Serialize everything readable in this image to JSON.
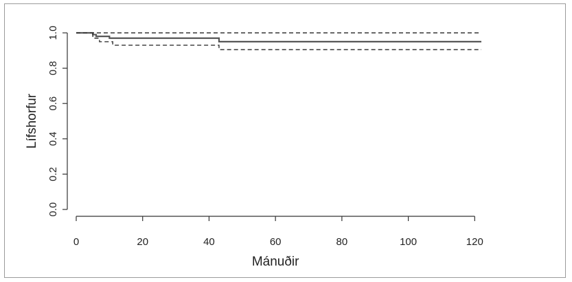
{
  "chart_data": {
    "type": "line",
    "title": "",
    "xlabel": "Mánuðir",
    "ylabel": "Lífshorfur",
    "xlim": [
      0,
      125
    ],
    "ylim": [
      -0.02,
      1.03
    ],
    "x_ticks": [
      0,
      20,
      40,
      60,
      80,
      100,
      120
    ],
    "x_tick_labels": [
      "0",
      "20",
      "40",
      "60",
      "80",
      "100",
      "120"
    ],
    "y_ticks": [
      0.0,
      0.2,
      0.4,
      0.6,
      0.8,
      1.0
    ],
    "y_tick_labels": [
      "0.0",
      "0.2",
      "0.4",
      "0.6",
      "0.8",
      "1.0"
    ],
    "grid": false,
    "series": [
      {
        "role": "estimate",
        "style": "solid",
        "color": "#555555",
        "points": [
          [
            0,
            1.0
          ],
          [
            5,
            1.0
          ],
          [
            5,
            0.99
          ],
          [
            6,
            0.99
          ],
          [
            6,
            0.98
          ],
          [
            10,
            0.98
          ],
          [
            10,
            0.97
          ],
          [
            43,
            0.97
          ],
          [
            43,
            0.95
          ],
          [
            122,
            0.95
          ]
        ]
      },
      {
        "role": "upper-ci",
        "style": "dashed",
        "color": "#333333",
        "points": [
          [
            0,
            1.0
          ],
          [
            122,
            1.0
          ]
        ]
      },
      {
        "role": "lower-ci",
        "style": "dashed",
        "color": "#333333",
        "points": [
          [
            5,
            1.0
          ],
          [
            5,
            0.97
          ],
          [
            7,
            0.97
          ],
          [
            7,
            0.95
          ],
          [
            11,
            0.95
          ],
          [
            11,
            0.93
          ],
          [
            43,
            0.93
          ],
          [
            43,
            0.905
          ],
          [
            122,
            0.905
          ]
        ]
      }
    ]
  }
}
